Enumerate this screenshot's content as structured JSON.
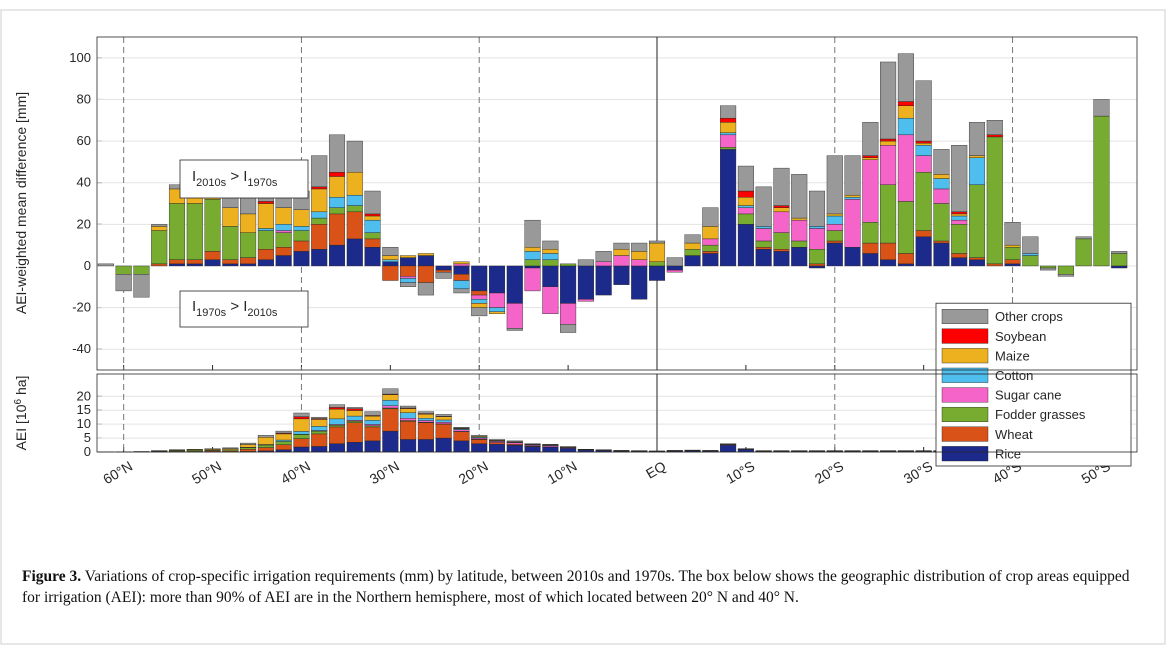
{
  "chart_data": [
    {
      "type": "bar",
      "stacked": true,
      "ylabel": "AEI-weighted mean difference [mm]",
      "annotations": [
        [
          "I",
          "2010s",
          " > I",
          "1970s"
        ],
        [
          "I",
          "1970s",
          " > I",
          "2010s"
        ]
      ],
      "x": [
        62,
        60,
        58,
        56,
        54,
        52,
        50,
        48,
        46,
        44,
        42,
        40,
        38,
        36,
        34,
        32,
        30,
        28,
        26,
        24,
        22,
        20,
        18,
        16,
        14,
        12,
        10,
        8,
        6,
        4,
        2,
        0,
        -2,
        -4,
        -6,
        -8,
        -10,
        -12,
        -14,
        -16,
        -18,
        -20,
        -22,
        -24,
        -26,
        -28,
        -30,
        -32,
        -34,
        -36,
        -38,
        -40,
        -42,
        -44,
        -46,
        -48,
        -50,
        -52
      ],
      "xlim": [
        63,
        -54
      ],
      "ylim": [
        -50,
        110
      ],
      "yticks": [
        -40,
        -20,
        0,
        20,
        40,
        60,
        80,
        100
      ],
      "grid": true,
      "legend": "lower right",
      "series": [
        {
          "name": "Rice",
          "color": "#1c2a8c",
          "values": [
            0,
            0,
            0,
            0,
            1,
            1,
            3,
            1,
            1,
            3,
            5,
            7,
            8,
            10,
            13,
            9,
            2,
            4,
            5,
            -2,
            -4,
            -12,
            -13,
            -18,
            -1,
            -10,
            -18,
            -16,
            -14,
            -9,
            -16,
            -7,
            -2,
            5,
            6,
            56,
            20,
            8,
            7,
            9,
            -1,
            11,
            9,
            6,
            3,
            1,
            14,
            11,
            4,
            3,
            0,
            1,
            0,
            0,
            0,
            0,
            0,
            -1
          ]
        },
        {
          "name": "Wheat",
          "color": "#d95319",
          "values": [
            0,
            0,
            0,
            1,
            2,
            2,
            4,
            2,
            3,
            5,
            4,
            5,
            12,
            15,
            13,
            4,
            -7,
            -5,
            -8,
            -1,
            -3,
            -2,
            0,
            0,
            0,
            0,
            0,
            0,
            0,
            0,
            0,
            0,
            0,
            0,
            1,
            0,
            0,
            1,
            1,
            0,
            1,
            1,
            0,
            5,
            8,
            5,
            3,
            1,
            2,
            1,
            1,
            2,
            0,
            0,
            0,
            0,
            0,
            0
          ]
        },
        {
          "name": "Fodder grasses",
          "color": "#77ac30",
          "values": [
            0,
            -4,
            -4,
            16,
            27,
            27,
            25,
            16,
            12,
            9,
            7,
            5,
            3,
            3,
            3,
            3,
            0,
            0,
            0,
            0,
            0,
            0,
            0,
            0,
            3,
            3,
            1,
            0,
            0,
            0,
            0,
            2,
            0,
            3,
            3,
            1,
            5,
            3,
            8,
            3,
            7,
            5,
            0,
            10,
            28,
            25,
            28,
            18,
            14,
            35,
            61,
            6,
            5,
            -1,
            -4,
            13,
            72,
            6
          ]
        },
        {
          "name": "Sugar cane",
          "color": "#f564c8",
          "values": [
            0,
            0,
            0,
            0,
            0,
            0,
            0,
            0,
            0,
            0,
            1,
            0,
            0,
            0,
            0,
            0,
            0,
            -1,
            0,
            0,
            1,
            -2,
            -7,
            -12,
            -11,
            -13,
            -10,
            -1,
            2,
            5,
            3,
            0,
            -1,
            0,
            3,
            6,
            3,
            6,
            10,
            10,
            10,
            3,
            23,
            30,
            19,
            32,
            8,
            7,
            2,
            0,
            0,
            0,
            0,
            0,
            0,
            0,
            0,
            0
          ]
        },
        {
          "name": "Cotton",
          "color": "#4dbeee",
          "values": [
            0,
            0,
            0,
            0,
            0,
            0,
            0,
            0,
            0,
            1,
            3,
            2,
            3,
            5,
            5,
            6,
            1,
            -2,
            0,
            0,
            -4,
            -2,
            -2,
            0,
            4,
            3,
            0,
            0,
            0,
            0,
            0,
            0,
            0,
            0,
            0,
            1,
            1,
            1,
            0,
            0,
            1,
            4,
            1,
            0,
            0,
            8,
            5,
            5,
            2,
            13,
            0,
            0,
            1,
            0,
            0,
            0,
            0,
            0
          ]
        },
        {
          "name": "Maize",
          "color": "#edb120",
          "values": [
            0,
            0,
            0,
            2,
            7,
            7,
            8,
            9,
            9,
            12,
            8,
            8,
            11,
            10,
            11,
            2,
            2,
            1,
            1,
            0,
            1,
            -2,
            -1,
            0,
            2,
            2,
            0,
            0,
            0,
            3,
            4,
            9,
            0,
            3,
            6,
            5,
            4,
            0,
            2,
            1,
            0,
            1,
            1,
            1,
            2,
            6,
            1,
            2,
            1,
            1,
            0,
            1,
            0,
            0,
            0,
            0,
            0,
            0
          ]
        },
        {
          "name": "Soybean",
          "color": "#ff0000",
          "values": [
            0,
            0,
            0,
            0,
            0,
            0,
            0,
            0,
            0,
            1,
            0,
            0,
            1,
            2,
            0,
            1,
            0,
            0,
            0,
            0,
            0,
            0,
            0,
            0,
            0,
            0,
            0,
            0,
            0,
            0,
            0,
            0,
            0,
            0,
            0,
            2,
            3,
            0,
            1,
            0,
            0,
            0,
            0,
            1,
            1,
            2,
            1,
            0,
            1,
            0,
            1,
            0,
            0,
            0,
            0,
            0,
            0,
            0
          ]
        },
        {
          "name": "Other crops",
          "color": "#999999",
          "values": [
            1,
            -8,
            -11,
            1,
            2,
            6,
            9,
            16,
            12,
            11,
            15,
            9,
            15,
            18,
            15,
            11,
            4,
            -2,
            -6,
            -3,
            -2,
            -4,
            0,
            -1,
            13,
            4,
            -4,
            3,
            5,
            3,
            4,
            1,
            4,
            4,
            9,
            6,
            12,
            19,
            18,
            21,
            17,
            28,
            19,
            16,
            37,
            23,
            29,
            12,
            32,
            16,
            7,
            11,
            8,
            -1,
            -1,
            1,
            8,
            1
          ]
        }
      ]
    },
    {
      "type": "bar",
      "stacked": true,
      "ylabel": [
        "AEI [10",
        "6",
        " ha]"
      ],
      "x": [
        62,
        60,
        58,
        56,
        54,
        52,
        50,
        48,
        46,
        44,
        42,
        40,
        38,
        36,
        34,
        32,
        30,
        28,
        26,
        24,
        22,
        20,
        18,
        16,
        14,
        12,
        10,
        8,
        6,
        4,
        2,
        0,
        -2,
        -4,
        -6,
        -8,
        -10,
        -12,
        -14,
        -16,
        -18,
        -20,
        -22,
        -24,
        -26,
        -28,
        -30,
        -32,
        -34,
        -36,
        -38,
        -40,
        -42,
        -44,
        -46,
        -48,
        -50,
        -52
      ],
      "xlim": [
        63,
        -54
      ],
      "xticks": [
        {
          "value": 60,
          "label": "60°N"
        },
        {
          "value": 50,
          "label": "50°N"
        },
        {
          "value": 40,
          "label": "40°N"
        },
        {
          "value": 30,
          "label": "30°N"
        },
        {
          "value": 20,
          "label": "20°N"
        },
        {
          "value": 10,
          "label": "10°N"
        },
        {
          "value": 0,
          "label": "EQ"
        },
        {
          "value": -10,
          "label": "10°S"
        },
        {
          "value": -20,
          "label": "20°S"
        },
        {
          "value": -30,
          "label": "30°S"
        },
        {
          "value": -40,
          "label": "40°S"
        },
        {
          "value": -50,
          "label": "50°S"
        }
      ],
      "ylim": [
        0,
        28
      ],
      "yticks": [
        0,
        5,
        10,
        15,
        20
      ],
      "grid": true,
      "series": [
        {
          "color": "#1c2a8c",
          "values": [
            0,
            0,
            0,
            0,
            0,
            0,
            0.1,
            0.1,
            0.2,
            0.4,
            0.8,
            1.8,
            2,
            3,
            3.5,
            4,
            7.5,
            4.5,
            4.5,
            5,
            4,
            3,
            2.8,
            2.4,
            1.9,
            1.8,
            1.3,
            0.7,
            0.5,
            0.3,
            0.2,
            0.2,
            0.3,
            0.4,
            0.3,
            2.4,
            0.9,
            0.1,
            0.1,
            0.1,
            0.1,
            0.1,
            0.1,
            0.1,
            0.1,
            0.1,
            0.1,
            0.1,
            0.1,
            0.1,
            0.1,
            0,
            0,
            0,
            0,
            0,
            0,
            0
          ]
        },
        {
          "color": "#d95319",
          "values": [
            0,
            0,
            0,
            0.1,
            0.2,
            0.2,
            0.3,
            0.3,
            0.8,
            1.2,
            1.8,
            3,
            4.5,
            6,
            7,
            5,
            8,
            6.5,
            6,
            5,
            3.3,
            1.5,
            0.6,
            0.4,
            0.2,
            0,
            0,
            0,
            0,
            0,
            0,
            0,
            0,
            0,
            0,
            0,
            0,
            0,
            0,
            0,
            0,
            0,
            0,
            0,
            0,
            0,
            0,
            0,
            0,
            0,
            0,
            0,
            0,
            0,
            0,
            0,
            0,
            0
          ]
        },
        {
          "color": "#77ac30",
          "values": [
            0,
            0.05,
            0.1,
            0.2,
            0.3,
            0.4,
            0.3,
            0.4,
            0.6,
            0.9,
            1.2,
            1.5,
            1,
            0.6,
            0.6,
            0.4,
            0.3,
            0.3,
            0.2,
            0.1,
            0.1,
            0.1,
            0,
            0,
            0,
            0,
            0,
            0,
            0,
            0,
            0,
            0,
            0,
            0,
            0,
            0,
            0,
            0.1,
            0.1,
            0.1,
            0.1,
            0.1,
            0.1,
            0.1,
            0.1,
            0.1,
            0.1,
            0.1,
            0.1,
            0.1,
            0.1,
            0.1,
            0.1,
            0.1,
            0.1,
            0.1,
            0.1,
            0.1
          ]
        },
        {
          "color": "#f564c8",
          "values": [
            0,
            0,
            0,
            0,
            0,
            0,
            0,
            0,
            0,
            0,
            0,
            0.1,
            0.2,
            0.3,
            0.3,
            0.5,
            0.8,
            0.8,
            0.6,
            0.6,
            0.6,
            0.4,
            0.4,
            0.5,
            0.3,
            0.4,
            0.2,
            0.1,
            0.1,
            0.1,
            0.1,
            0,
            0.1,
            0.1,
            0.1,
            0.2,
            0.1,
            0.1,
            0.1,
            0.1,
            0.1,
            0.1,
            0.1,
            0.1,
            0.1,
            0.1,
            0.1,
            0.1,
            0.1,
            0.1,
            0.1,
            0,
            0,
            0,
            0,
            0,
            0,
            0
          ]
        },
        {
          "color": "#4dbeee",
          "values": [
            0,
            0,
            0,
            0,
            0,
            0,
            0,
            0,
            0.1,
            0.2,
            0.5,
            1,
            1.5,
            2,
            1.5,
            1.5,
            2,
            2,
            0.8,
            0.8,
            0.3,
            0.3,
            0.2,
            0.2,
            0.2,
            0.2,
            0,
            0,
            0,
            0,
            0,
            0,
            0,
            0,
            0,
            0,
            0,
            0,
            0,
            0,
            0,
            0,
            0,
            0,
            0,
            0,
            0,
            0,
            0,
            0,
            0,
            0,
            0,
            0,
            0,
            0,
            0,
            0
          ]
        },
        {
          "color": "#edb120",
          "values": [
            0,
            0,
            0,
            0.1,
            0.2,
            0.3,
            0.3,
            0.4,
            1,
            2.6,
            2.2,
            4.5,
            2.5,
            3.5,
            2,
            1.5,
            2,
            1.5,
            1.5,
            1.2,
            0.2,
            0.3,
            0.2,
            0.2,
            0.2,
            0.2,
            0.2,
            0.1,
            0.1,
            0.1,
            0.1,
            0.1,
            0.1,
            0.1,
            0.1,
            0.2,
            0.1,
            0.1,
            0.1,
            0.1,
            0.1,
            0.1,
            0.1,
            0.1,
            0.1,
            0.1,
            0.1,
            0.1,
            0.1,
            0.1,
            0.1,
            0,
            0,
            0,
            0,
            0,
            0,
            0
          ]
        },
        {
          "color": "#ff0000",
          "values": [
            0,
            0,
            0,
            0,
            0,
            0,
            0,
            0,
            0,
            0,
            0.3,
            0.8,
            0.3,
            0.6,
            0.6,
            0.2,
            0.2,
            0.2,
            0.2,
            0.1,
            0.1,
            0,
            0,
            0,
            0,
            0,
            0,
            0,
            0,
            0,
            0,
            0,
            0,
            0,
            0,
            0,
            0,
            0,
            0,
            0,
            0,
            0,
            0,
            0,
            0,
            0,
            0,
            0,
            0,
            0,
            0,
            0,
            0,
            0,
            0,
            0,
            0,
            0
          ]
        },
        {
          "color": "#999999",
          "values": [
            0.05,
            0.05,
            0.1,
            0.1,
            0.1,
            0.1,
            0.2,
            0.3,
            0.5,
            0.7,
            0.7,
            1.3,
            0.5,
            1,
            0.5,
            1.4,
            1.9,
            0.7,
            0.7,
            0.7,
            0.3,
            0.4,
            0.3,
            0.3,
            0.2,
            0.2,
            0.3,
            0.1,
            0.1,
            0.1,
            0.1,
            0.1,
            0.1,
            0.1,
            0.1,
            0.2,
            0.1,
            0.1,
            0.1,
            0.1,
            0.1,
            0.1,
            0.1,
            0.1,
            0.1,
            0.1,
            0.1,
            0.1,
            0.1,
            0.1,
            0.1,
            0.05,
            0.05,
            0.05,
            0.05,
            0.05,
            0.05,
            0.05
          ]
        }
      ]
    }
  ],
  "caption": {
    "label": "Figure 3.",
    "text": "Variations of crop-specific irrigation requirements (mm) by latitude, between 2010s and 1970s. The box below shows the geographic distribution of crop areas equipped for irrigation (AEI): more than 90% of AEI are in the Northern hemisphere, most of which located between 20° N and 40° N."
  }
}
